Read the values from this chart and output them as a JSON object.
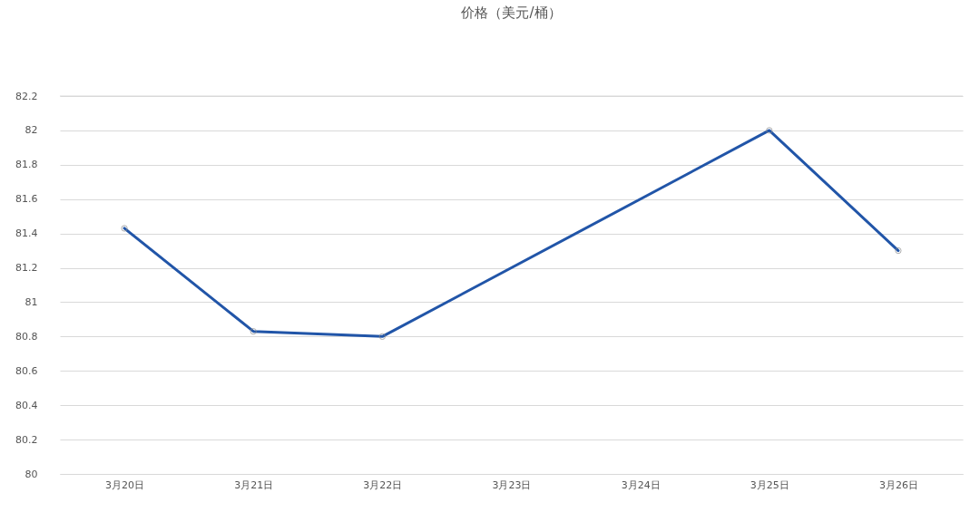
{
  "chart_data": {
    "type": "line",
    "title": "价格（美元/桶）",
    "categories": [
      "3月20日",
      "3月21日",
      "3月22日",
      "3月23日",
      "3月24日",
      "3月25日",
      "3月26日"
    ],
    "series": [
      {
        "color": "#2155a8",
        "values": [
          81.43,
          80.83,
          80.8,
          null,
          null,
          82.0,
          81.3
        ]
      }
    ],
    "ylim": [
      80,
      82.2
    ],
    "yticks": [
      80,
      80.2,
      80.4,
      80.6,
      80.8,
      81,
      81.2,
      81.4,
      81.6,
      81.8,
      82,
      82.2
    ],
    "grid": "y",
    "marker": "circle",
    "line_style": "solid"
  }
}
